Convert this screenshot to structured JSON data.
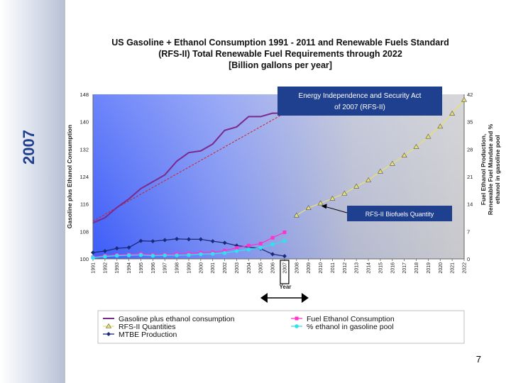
{
  "slide": {
    "side_label": "2007",
    "page_number": "7"
  },
  "chart_data": {
    "type": "line",
    "title_lines": [
      "US Gasoline + Ethanol Consumption 1991 - 2011 and Renewable Fuels Standard",
      "(RFS-II) Total Renewable Fuel Requirements through 2022",
      "[Billion gallons per year]"
    ],
    "xlabel": "Year",
    "ylabel_left": "Gasoline plus Ethanol Consumption",
    "ylabel_right_lines": [
      "Fuel Ethanol Production,",
      "Renewable Fuel Mandate and %",
      "ethanol in gasoline pool"
    ],
    "x_ticks": [
      "1991",
      "1992",
      "1993",
      "1994",
      "1995",
      "1996",
      "1997",
      "1998",
      "1999",
      "2000",
      "2001",
      "2002",
      "2003",
      "2004",
      "2005",
      "2006",
      "2007",
      "2008",
      "2009",
      "2010",
      "2011",
      "2012",
      "2013",
      "2014",
      "2015",
      "2016",
      "2017",
      "2018",
      "2019",
      "2020",
      "2021",
      "2022"
    ],
    "highlight_tick": "2007",
    "y_left": {
      "ticks": [
        "100",
        "108",
        "116",
        "124",
        "132",
        "140",
        "148"
      ],
      "range": [
        100,
        148
      ]
    },
    "y_right": {
      "ticks": [
        "0",
        "7",
        "14",
        "21",
        "28",
        "35",
        "42"
      ],
      "range": [
        0,
        42
      ]
    },
    "grid": false,
    "series": [
      {
        "name": "Gasoline plus ethanol consumption",
        "axis": "left",
        "color": "#7b2a8c",
        "marker": "none",
        "x": [
          "1991",
          "1992",
          "1993",
          "1994",
          "1995",
          "1996",
          "1997",
          "1998",
          "1999",
          "2000",
          "2001",
          "2002",
          "2003",
          "2004",
          "2005",
          "2006",
          "2007"
        ],
        "values": [
          110.5,
          112,
          115,
          117.5,
          120.5,
          122.5,
          124.5,
          128.5,
          131,
          131.5,
          133.5,
          137.5,
          138.5,
          141.5,
          141.5,
          142.5,
          142.5
        ]
      },
      {
        "name": "RFS-II Quantities",
        "axis": "right",
        "color": "#e8e070",
        "marker": "triangle",
        "x": [
          "2008",
          "2009",
          "2010",
          "2011",
          "2012",
          "2013",
          "2014",
          "2015",
          "2016",
          "2017",
          "2018",
          "2019",
          "2020",
          "2021",
          "2022"
        ],
        "values": [
          11.1,
          13,
          14.2,
          15.4,
          16.7,
          18.5,
          20.1,
          22.3,
          24.3,
          26.4,
          28.6,
          31.2,
          33.8,
          37.1,
          40.6
        ]
      },
      {
        "name": "MTBE Production",
        "axis": "right",
        "color": "#1a2a7a",
        "marker": "diamond",
        "x": [
          "1991",
          "1992",
          "1993",
          "1994",
          "1995",
          "1996",
          "1997",
          "1998",
          "1999",
          "2000",
          "2001",
          "2002",
          "2003",
          "2004",
          "2005",
          "2006",
          "2007"
        ],
        "values": [
          1.6,
          2.0,
          2.7,
          2.9,
          4.6,
          4.5,
          4.8,
          5.1,
          5.0,
          5.0,
          4.5,
          4.1,
          3.4,
          3.0,
          2.6,
          1.2,
          0.7
        ]
      },
      {
        "name": "Fuel Ethanol Consumption",
        "axis": "right",
        "color": "#ff33cc",
        "marker": "square",
        "x": [
          "1991",
          "1992",
          "1993",
          "1994",
          "1995",
          "1996",
          "1997",
          "1998",
          "1999",
          "2000",
          "2001",
          "2002",
          "2003",
          "2004",
          "2005",
          "2006",
          "2007"
        ],
        "values": [
          0.4,
          0.8,
          1.0,
          1.1,
          1.3,
          1.0,
          1.1,
          1.3,
          1.4,
          1.6,
          1.7,
          2.1,
          2.8,
          3.4,
          3.9,
          5.4,
          6.8
        ]
      },
      {
        "name": "% ethanol in gasoline pool",
        "axis": "right",
        "color": "#33e0f0",
        "marker": "circle",
        "x": [
          "1991",
          "1992",
          "1993",
          "1994",
          "1995",
          "1996",
          "1997",
          "1998",
          "1999",
          "2000",
          "2001",
          "2002",
          "2003",
          "2004",
          "2005",
          "2006",
          "2007"
        ],
        "values": [
          0.3,
          0.6,
          0.8,
          0.9,
          1.0,
          0.8,
          0.9,
          0.9,
          1.0,
          1.2,
          1.3,
          1.5,
          2.0,
          2.4,
          2.8,
          3.7,
          4.6
        ]
      }
    ],
    "trend_line": {
      "color": "#cc2222",
      "x": [
        "1991",
        "2007"
      ],
      "values": [
        111,
        142.5
      ]
    },
    "annotations": [
      {
        "text": "Energy Independence and Security Act of 2007 (RFS-II)",
        "points_to": "2007"
      },
      {
        "text": "RFS-II Biofuels Quantity",
        "points_to": "2009"
      }
    ],
    "legend": {
      "placement": "bottom",
      "items": [
        {
          "label": "Gasoline plus ethanol consumption",
          "color": "#7b2a8c",
          "marker": "none"
        },
        {
          "label": "Fuel Ethanol Consumption",
          "color": "#ff33cc",
          "marker": "square"
        },
        {
          "label": "RFS-II Quantities",
          "color": "#e8e070",
          "marker": "triangle"
        },
        {
          "label": "% ethanol in gasoline pool",
          "color": "#33e0f0",
          "marker": "circle"
        },
        {
          "label": "MTBE Production",
          "color": "#1a2a7a",
          "marker": "diamond"
        }
      ]
    },
    "colors": {
      "annotation_bg": "#1f3f8f",
      "annotation_text": "#ffffff",
      "plot_bg_left": "#4060ff",
      "plot_bg_right": "#c8c8cc"
    }
  }
}
